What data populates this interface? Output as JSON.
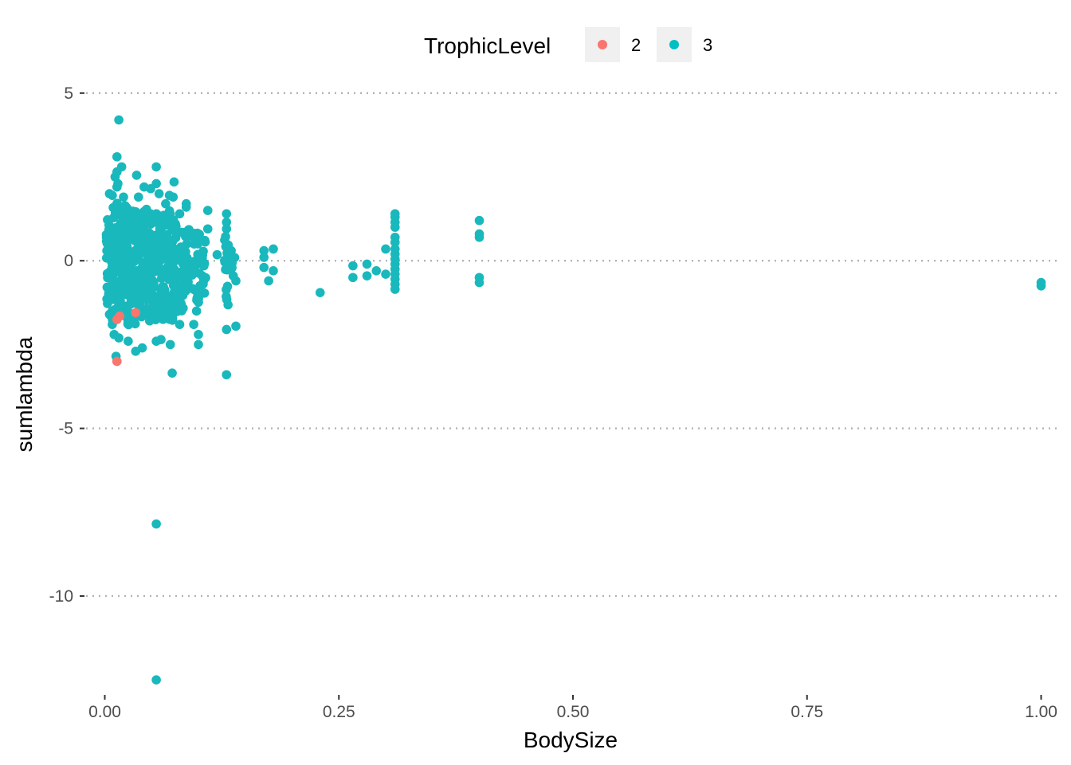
{
  "chart_data": {
    "type": "scatter",
    "xlabel": "BodySize",
    "ylabel": "sumlambda",
    "xlim": [
      -0.02,
      1.02
    ],
    "ylim": [
      -12.9,
      5.4
    ],
    "x_ticks": [
      "0.00",
      "0.25",
      "0.50",
      "0.75",
      "1.00"
    ],
    "x_tick_values": [
      0,
      0.25,
      0.5,
      0.75,
      1.0
    ],
    "y_ticks": [
      "5",
      "0",
      "-5",
      "-10"
    ],
    "y_tick_values": [
      5,
      0,
      -5,
      -10
    ],
    "grid": "horizontal-dotted",
    "legend": {
      "title": "TrophicLevel",
      "placement": "top",
      "entries": [
        {
          "label": "2",
          "color": "#F8766D"
        },
        {
          "label": "3",
          "color": "#00BFC4"
        }
      ]
    },
    "series": [
      {
        "name": "3",
        "color": "#19B8BC",
        "points": [
          [
            0.015,
            4.2
          ],
          [
            0.013,
            3.1
          ],
          [
            0.018,
            2.8
          ],
          [
            0.013,
            2.65
          ],
          [
            0.011,
            2.5
          ],
          [
            0.014,
            2.3
          ],
          [
            0.013,
            2.2
          ],
          [
            0.005,
            2.0
          ],
          [
            0.008,
            1.95
          ],
          [
            0.02,
            1.9
          ],
          [
            0.034,
            2.55
          ],
          [
            0.042,
            2.2
          ],
          [
            0.049,
            2.15
          ],
          [
            0.055,
            2.8
          ],
          [
            0.055,
            2.3
          ],
          [
            0.058,
            2.0
          ],
          [
            0.036,
            1.9
          ],
          [
            0.069,
            1.95
          ],
          [
            0.073,
            1.9
          ],
          [
            0.074,
            2.35
          ],
          [
            0.087,
            1.7
          ],
          [
            0.087,
            1.6
          ],
          [
            0.11,
            1.5
          ],
          [
            0.13,
            1.4
          ],
          [
            0.13,
            1.15
          ],
          [
            0.13,
            0.95
          ],
          [
            0.065,
            1.7
          ],
          [
            0.08,
            1.4
          ],
          [
            0.11,
            0.95
          ],
          [
            0.1,
            0.6
          ],
          [
            0.12,
            0.18
          ],
          [
            0.135,
            0.3
          ],
          [
            0.14,
            -0.6
          ],
          [
            0.14,
            -1.95
          ],
          [
            0.13,
            -2.05
          ],
          [
            0.13,
            -3.4
          ],
          [
            0.072,
            -3.35
          ],
          [
            0.07,
            -2.5
          ],
          [
            0.06,
            -2.35
          ],
          [
            0.055,
            -2.4
          ],
          [
            0.04,
            -2.6
          ],
          [
            0.033,
            -2.7
          ],
          [
            0.025,
            -2.4
          ],
          [
            0.015,
            -2.3
          ],
          [
            0.012,
            -2.85
          ],
          [
            0.01,
            -2.2
          ],
          [
            0.005,
            -1.6
          ],
          [
            0.008,
            -1.9
          ],
          [
            0.1,
            -2.5
          ],
          [
            0.1,
            -2.2
          ],
          [
            0.095,
            -1.9
          ],
          [
            0.098,
            -1.5
          ],
          [
            0.08,
            -1.9
          ],
          [
            0.17,
            0.3
          ],
          [
            0.17,
            0.1
          ],
          [
            0.17,
            -0.2
          ],
          [
            0.175,
            -0.6
          ],
          [
            0.18,
            0.35
          ],
          [
            0.18,
            -0.3
          ],
          [
            0.23,
            -0.95
          ],
          [
            0.265,
            -0.15
          ],
          [
            0.265,
            -0.5
          ],
          [
            0.28,
            -0.1
          ],
          [
            0.28,
            -0.45
          ],
          [
            0.29,
            -0.3
          ],
          [
            0.3,
            0.35
          ],
          [
            0.3,
            -0.4
          ],
          [
            0.31,
            1.4
          ],
          [
            0.31,
            1.3
          ],
          [
            0.31,
            1.15
          ],
          [
            0.31,
            1.0
          ],
          [
            0.31,
            0.7
          ],
          [
            0.31,
            0.55
          ],
          [
            0.31,
            0.35
          ],
          [
            0.31,
            0.2
          ],
          [
            0.31,
            0.05
          ],
          [
            0.31,
            -0.1
          ],
          [
            0.31,
            -0.25
          ],
          [
            0.31,
            -0.4
          ],
          [
            0.31,
            -0.55
          ],
          [
            0.31,
            -0.7
          ],
          [
            0.31,
            -0.85
          ],
          [
            0.4,
            1.2
          ],
          [
            0.4,
            0.8
          ],
          [
            0.4,
            0.7
          ],
          [
            0.4,
            -0.5
          ],
          [
            0.4,
            -0.65
          ],
          [
            1.0,
            -0.65
          ],
          [
            1.0,
            -0.75
          ],
          [
            0.055,
            -7.85
          ],
          [
            0.055,
            -12.5
          ]
        ],
        "dense_columns": [
          {
            "x": 0.003,
            "ymin": -1.6,
            "ymax": 1.3
          },
          {
            "x": 0.006,
            "ymin": -1.7,
            "ymax": 1.4
          },
          {
            "x": 0.009,
            "ymin": -1.8,
            "ymax": 1.6
          },
          {
            "x": 0.012,
            "ymin": -1.9,
            "ymax": 1.7
          },
          {
            "x": 0.015,
            "ymin": -1.8,
            "ymax": 1.8
          },
          {
            "x": 0.018,
            "ymin": -1.6,
            "ymax": 1.8
          },
          {
            "x": 0.021,
            "ymin": -1.7,
            "ymax": 1.7
          },
          {
            "x": 0.024,
            "ymin": -2.0,
            "ymax": 1.6
          },
          {
            "x": 0.027,
            "ymin": -1.8,
            "ymax": 1.7
          },
          {
            "x": 0.03,
            "ymin": -1.7,
            "ymax": 1.6
          },
          {
            "x": 0.033,
            "ymin": -1.9,
            "ymax": 1.6
          },
          {
            "x": 0.036,
            "ymin": -1.8,
            "ymax": 1.5
          },
          {
            "x": 0.04,
            "ymin": -1.7,
            "ymax": 1.5
          },
          {
            "x": 0.044,
            "ymin": -1.9,
            "ymax": 1.6
          },
          {
            "x": 0.048,
            "ymin": -1.8,
            "ymax": 1.5
          },
          {
            "x": 0.052,
            "ymin": -1.6,
            "ymax": 1.6
          },
          {
            "x": 0.056,
            "ymin": -1.8,
            "ymax": 1.7
          },
          {
            "x": 0.06,
            "ymin": -1.7,
            "ymax": 1.4
          },
          {
            "x": 0.064,
            "ymin": -1.8,
            "ymax": 1.6
          },
          {
            "x": 0.068,
            "ymin": -1.9,
            "ymax": 1.5
          },
          {
            "x": 0.072,
            "ymin": -1.8,
            "ymax": 1.5
          },
          {
            "x": 0.076,
            "ymin": -1.6,
            "ymax": 1.3
          },
          {
            "x": 0.082,
            "ymin": -1.5,
            "ymax": 1.1
          },
          {
            "x": 0.088,
            "ymin": -1.3,
            "ymax": 1.0
          },
          {
            "x": 0.094,
            "ymin": -1.2,
            "ymax": 0.9
          },
          {
            "x": 0.1,
            "ymin": -1.3,
            "ymax": 0.9
          },
          {
            "x": 0.106,
            "ymin": -1.0,
            "ymax": 0.7
          },
          {
            "x": 0.13,
            "ymin": -1.5,
            "ymax": 0.9
          },
          {
            "x": 0.137,
            "ymin": -0.6,
            "ymax": 0.2
          }
        ]
      },
      {
        "name": "2",
        "color": "#F8766D",
        "points": [
          [
            0.013,
            -3.0
          ],
          [
            0.013,
            -1.75
          ],
          [
            0.016,
            -1.65
          ],
          [
            0.033,
            -1.55
          ],
          [
            0.03,
            -1.2
          ],
          [
            0.028,
            -1.0
          ],
          [
            0.027,
            -0.55
          ],
          [
            0.033,
            -0.6
          ],
          [
            0.02,
            -0.4
          ],
          [
            0.013,
            0.3
          ],
          [
            0.018,
            0.9
          ],
          [
            0.022,
            1.1
          ],
          [
            0.025,
            0.1
          ]
        ]
      }
    ]
  }
}
